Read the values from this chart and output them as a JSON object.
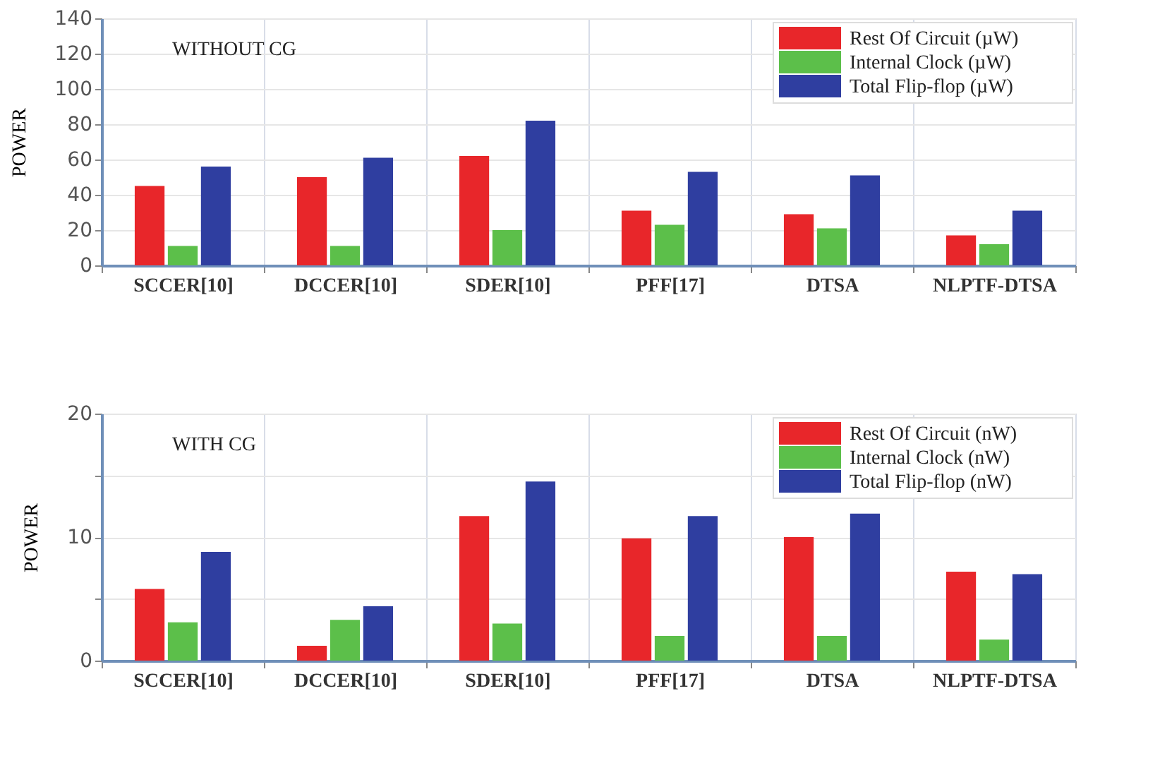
{
  "chart_data": [
    {
      "type": "bar",
      "ylabel": "POWER",
      "annotations": [
        "WITHOUT CG"
      ],
      "categories": [
        "SCCER[10]",
        "DCCER[10]",
        "SDER[10]",
        "PFF[17]",
        "DTSA",
        "NLPTF-DTSA"
      ],
      "series": [
        {
          "name": "Rest Of Circuit (µW)",
          "color": "#e8262a",
          "values": [
            45,
            50,
            62,
            31,
            29,
            17
          ]
        },
        {
          "name": "Internal Clock (µW)",
          "color": "#5cbf4a",
          "values": [
            11,
            11,
            20,
            23,
            21,
            12
          ]
        },
        {
          "name": "Total Flip-flop (µW)",
          "color": "#2f3ea0",
          "values": [
            56,
            61,
            82,
            53,
            51,
            31
          ]
        }
      ],
      "ylim": [
        0,
        140
      ],
      "yticks": [
        0,
        20,
        40,
        60,
        80,
        100,
        120,
        140
      ],
      "grid": true,
      "legend": "top right"
    },
    {
      "type": "bar",
      "ylabel": "POWER",
      "annotations": [
        "WITH CG"
      ],
      "categories": [
        "SCCER[10]",
        "DCCER[10]",
        "SDER[10]",
        "PFF[17]",
        "DTSA",
        "NLPTF-DTSA"
      ],
      "series": [
        {
          "name": "Rest Of Circuit (nW)",
          "color": "#e8262a",
          "values": [
            5.8,
            1.2,
            11.7,
            9.9,
            10.0,
            7.2
          ]
        },
        {
          "name": "Internal Clock (nW)",
          "color": "#5cbf4a",
          "values": [
            3.1,
            3.3,
            3.0,
            2.0,
            2.0,
            1.7
          ]
        },
        {
          "name": "Total Flip-flop (nW)",
          "color": "#2f3ea0",
          "values": [
            8.8,
            4.4,
            14.5,
            11.7,
            11.9,
            7.0
          ]
        }
      ],
      "ylim": [
        0,
        20
      ],
      "yticks": [
        0,
        {
          "value": 5,
          "label": null
        },
        10,
        {
          "value": 15,
          "label": null
        },
        20
      ],
      "grid": true,
      "legend": "top right"
    }
  ]
}
